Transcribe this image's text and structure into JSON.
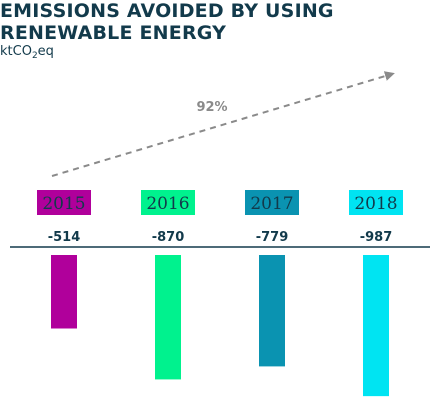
{
  "chart_data": {
    "type": "bar",
    "title": "EMISSIONS AVOIDED BY USING RENEWABLE ENERGY",
    "unit": {
      "prefix": "ktCO",
      "sub": "2",
      "suffix": "eq"
    },
    "categories": [
      "2015",
      "2016",
      "2017",
      "2018"
    ],
    "values": [
      -514,
      -870,
      -779,
      -987
    ],
    "value_labels": [
      "-514",
      "-870",
      "-779",
      "-987"
    ],
    "colors": [
      "#b0009b",
      "#00f28e",
      "#0a93b1",
      "#00e4f2"
    ],
    "label_text_color": "#123a4b",
    "axis_color": "#123a4b",
    "trend": {
      "label": "92%",
      "direction": "up",
      "color": "#8a8a8a"
    },
    "ylim": [
      -1000,
      0
    ],
    "grid": false,
    "legend": "none"
  }
}
